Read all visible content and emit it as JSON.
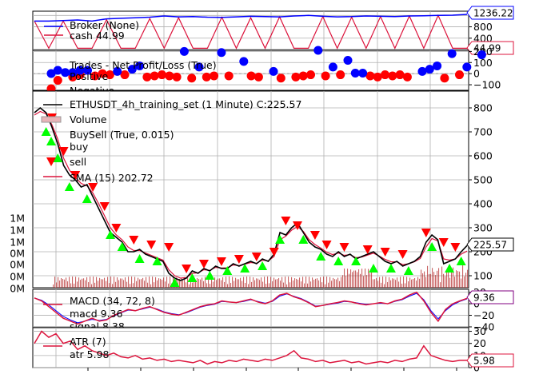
{
  "chart_data": [
    {
      "type": "line",
      "panel": "broker",
      "title": "Broker (None)",
      "legend": [
        "cash 44.99"
      ],
      "last_value_labels": [
        "1236.22",
        "44.99"
      ],
      "yticks": [
        "0",
        "400",
        "800",
        "1200"
      ],
      "ylim": [
        0,
        1350
      ],
      "series": [
        {
          "name": "value",
          "color": "#0000ff",
          "values": [
            1000,
            1000,
            1020,
            1040,
            1000,
            1080,
            1100,
            1120,
            1140,
            1180,
            1150,
            1160,
            1140,
            1130,
            1150,
            1170,
            1160,
            1150,
            1180,
            1200,
            1170,
            1150,
            1160,
            1180,
            1170,
            1160,
            1180,
            1190,
            1200,
            1210,
            1236.22
          ]
        },
        {
          "name": "cash",
          "color": "#dc143c",
          "values": [
            1000,
            45,
            1000,
            45,
            45,
            1050,
            45,
            45,
            1090,
            45,
            1120,
            45,
            45,
            1140,
            45,
            1120,
            45,
            1150,
            45,
            45,
            1160,
            45,
            1140,
            45,
            1160,
            45,
            1180,
            45,
            1200,
            45,
            44.99
          ]
        }
      ]
    },
    {
      "type": "scatter",
      "panel": "trades",
      "title": "Trades - Net Profit/Loss (True)",
      "legend": [
        "Positive",
        "Negative"
      ],
      "yticks": [
        "−100",
        "0",
        "100",
        "200"
      ],
      "ylim": [
        -150,
        210
      ],
      "positive": {
        "color": "#0000ff",
        "points": [
          [
            1,
            30
          ],
          [
            2,
            10
          ],
          [
            3,
            10
          ],
          [
            4,
            30
          ],
          [
            5,
            30
          ],
          [
            9,
            20
          ],
          [
            11,
            40
          ],
          [
            12,
            70
          ],
          [
            18,
            200
          ],
          [
            20,
            60
          ],
          [
            23,
            190
          ],
          [
            26,
            110
          ],
          [
            30,
            20
          ],
          [
            36,
            210
          ],
          [
            38,
            60
          ],
          [
            40,
            120
          ],
          [
            41,
            5
          ],
          [
            42,
            5
          ],
          [
            50,
            20
          ],
          [
            51,
            40
          ],
          [
            52,
            70
          ],
          [
            54,
            180
          ],
          [
            56,
            60
          ],
          [
            58,
            170
          ]
        ]
      },
      "negative": {
        "color": "#ff0000",
        "points": [
          [
            1,
            -60
          ],
          [
            3,
            -30
          ],
          [
            4,
            -10
          ],
          [
            6,
            -20
          ],
          [
            7,
            0
          ],
          [
            8,
            -10
          ],
          [
            10,
            -10
          ],
          [
            13,
            -30
          ],
          [
            14,
            -20
          ],
          [
            15,
            -10
          ],
          [
            16,
            -20
          ],
          [
            17,
            -30
          ],
          [
            19,
            -40
          ],
          [
            21,
            -30
          ],
          [
            22,
            -20
          ],
          [
            24,
            -20
          ],
          [
            27,
            -20
          ],
          [
            28,
            -30
          ],
          [
            31,
            -40
          ],
          [
            33,
            -30
          ],
          [
            34,
            -20
          ],
          [
            35,
            -10
          ],
          [
            37,
            -20
          ],
          [
            39,
            -10
          ],
          [
            43,
            -20
          ],
          [
            44,
            -30
          ],
          [
            45,
            -10
          ],
          [
            46,
            -20
          ],
          [
            47,
            -10
          ],
          [
            48,
            -30
          ],
          [
            53,
            -40
          ],
          [
            55,
            -10
          ]
        ]
      }
    },
    {
      "type": "line",
      "panel": "price",
      "title": "ETHUSDT_4h_training_set (1 Minute) C:225.57",
      "legend": [
        "Volume",
        "BuySell (True, 0.015)",
        "buy",
        "sell",
        "SMA (15) 202.72"
      ],
      "last_value_labels": [
        "225.57",
        "202.72"
      ],
      "yticks": [
        "100",
        "200",
        "300",
        "400",
        "500",
        "600",
        "700",
        "800"
      ],
      "ylim": [
        50,
        870
      ],
      "volume_ticks": [
        "0M",
        "0M",
        "0M",
        "0M",
        "1M",
        "1M",
        "1M"
      ],
      "series": [
        {
          "name": "close",
          "color": "#000000",
          "values": [
            780,
            800,
            780,
            720,
            650,
            560,
            520,
            500,
            470,
            480,
            430,
            380,
            330,
            280,
            260,
            240,
            200,
            200,
            210,
            190,
            180,
            170,
            160,
            110,
            90,
            80,
            90,
            120,
            110,
            130,
            120,
            140,
            130,
            130,
            150,
            140,
            150,
            160,
            150,
            170,
            160,
            190,
            280,
            270,
            300,
            320,
            280,
            240,
            220,
            210,
            190,
            180,
            200,
            180,
            190,
            170,
            180,
            190,
            200,
            180,
            160,
            150,
            160,
            140,
            150,
            160,
            180,
            240,
            270,
            250,
            150,
            160,
            170,
            200,
            225.57
          ]
        },
        {
          "name": "SMA (15)",
          "color": "#dc143c",
          "values": [
            770,
            785,
            775,
            730,
            670,
            590,
            540,
            510,
            485,
            475,
            445,
            400,
            350,
            300,
            270,
            250,
            220,
            205,
            205,
            195,
            185,
            175,
            165,
            125,
            100,
            90,
            92,
            110,
            112,
            125,
            122,
            135,
            132,
            133,
            145,
            142,
            148,
            155,
            152,
            165,
            162,
            180,
            250,
            265,
            290,
            305,
            285,
            250,
            230,
            215,
            198,
            188,
            195,
            185,
            188,
            175,
            178,
            186,
            194,
            182,
            168,
            158,
            158,
            146,
            150,
            158,
            172,
            220,
            255,
            245,
            170,
            165,
            170,
            190,
            202.72
          ]
        }
      ],
      "buy_points": [
        [
          2,
          700
        ],
        [
          4,
          590
        ],
        [
          6,
          470
        ],
        [
          9,
          420
        ],
        [
          13,
          270
        ],
        [
          15,
          220
        ],
        [
          18,
          170
        ],
        [
          21,
          160
        ],
        [
          24,
          70
        ],
        [
          27,
          90
        ],
        [
          30,
          100
        ],
        [
          33,
          120
        ],
        [
          36,
          130
        ],
        [
          39,
          140
        ],
        [
          42,
          250
        ],
        [
          46,
          250
        ],
        [
          49,
          180
        ],
        [
          52,
          160
        ],
        [
          55,
          160
        ],
        [
          58,
          130
        ],
        [
          61,
          130
        ],
        [
          64,
          120
        ],
        [
          68,
          220
        ],
        [
          71,
          130
        ],
        [
          73,
          160
        ]
      ],
      "sell_points": [
        [
          3,
          760
        ],
        [
          5,
          620
        ],
        [
          7,
          520
        ],
        [
          10,
          470
        ],
        [
          12,
          390
        ],
        [
          14,
          300
        ],
        [
          17,
          250
        ],
        [
          20,
          230
        ],
        [
          23,
          220
        ],
        [
          26,
          130
        ],
        [
          29,
          150
        ],
        [
          32,
          160
        ],
        [
          35,
          170
        ],
        [
          38,
          180
        ],
        [
          41,
          200
        ],
        [
          43,
          330
        ],
        [
          45,
          310
        ],
        [
          48,
          270
        ],
        [
          50,
          230
        ],
        [
          53,
          220
        ],
        [
          57,
          210
        ],
        [
          60,
          200
        ],
        [
          63,
          190
        ],
        [
          67,
          280
        ],
        [
          70,
          240
        ],
        [
          72,
          220
        ]
      ]
    },
    {
      "type": "line",
      "panel": "macd",
      "title": "MACD (34, 72, 8)",
      "legend": [
        "macd 9.36",
        "signal 8.38"
      ],
      "last_value_labels": [
        "9.36"
      ],
      "yticks": [
        "−40",
        "−20",
        "0",
        "20"
      ],
      "ylim": [
        -40,
        25
      ],
      "series": [
        {
          "name": "macd",
          "color": "#dc143c",
          "values": [
            10,
            5,
            -5,
            -15,
            -25,
            -30,
            -35,
            -30,
            -25,
            -30,
            -28,
            -20,
            -15,
            -10,
            -12,
            -8,
            -5,
            -10,
            -15,
            -18,
            -20,
            -15,
            -10,
            -5,
            -2,
            0,
            5,
            3,
            2,
            5,
            8,
            3,
            0,
            5,
            15,
            18,
            12,
            8,
            2,
            -5,
            -3,
            0,
            2,
            5,
            3,
            0,
            -2,
            0,
            2,
            0,
            5,
            8,
            15,
            20,
            5,
            -15,
            -30,
            -10,
            0,
            5,
            9.36
          ]
        },
        {
          "name": "signal",
          "color": "#0000ff",
          "values": [
            10,
            6,
            -2,
            -12,
            -22,
            -28,
            -33,
            -30,
            -27,
            -29,
            -27,
            -21,
            -16,
            -11,
            -12,
            -9,
            -6,
            -9,
            -14,
            -17,
            -19,
            -16,
            -11,
            -6,
            -3,
            -1,
            4,
            3,
            2,
            4,
            7,
            4,
            1,
            4,
            13,
            17,
            13,
            9,
            3,
            -4,
            -3,
            -1,
            1,
            4,
            3,
            1,
            -1,
            0,
            1,
            0,
            4,
            7,
            13,
            18,
            7,
            -12,
            -26,
            -12,
            -2,
            4,
            8.38
          ]
        }
      ]
    },
    {
      "type": "line",
      "panel": "atr",
      "title": "ATR (7)",
      "legend": [
        "atr 5.98"
      ],
      "last_value_labels": [
        "5.98"
      ],
      "yticks": [
        "0",
        "10",
        "20",
        "30"
      ],
      "ylim": [
        0,
        33
      ],
      "series": [
        {
          "name": "atr",
          "color": "#dc143c",
          "values": [
            20,
            30,
            25,
            28,
            20,
            22,
            15,
            18,
            14,
            12,
            10,
            12,
            9,
            8,
            10,
            7,
            8,
            6,
            7,
            5,
            6,
            5,
            4,
            6,
            3,
            5,
            4,
            6,
            5,
            7,
            6,
            5,
            7,
            6,
            8,
            10,
            14,
            8,
            7,
            5,
            6,
            4,
            5,
            6,
            4,
            5,
            3,
            4,
            5,
            4,
            6,
            5,
            7,
            8,
            18,
            10,
            8,
            6,
            5,
            6,
            5.98
          ]
        }
      ]
    }
  ],
  "colors": {
    "buy": "#00ff00",
    "sell": "#ff0000",
    "volume": "#b22222",
    "grid": "#b0b0b0"
  }
}
